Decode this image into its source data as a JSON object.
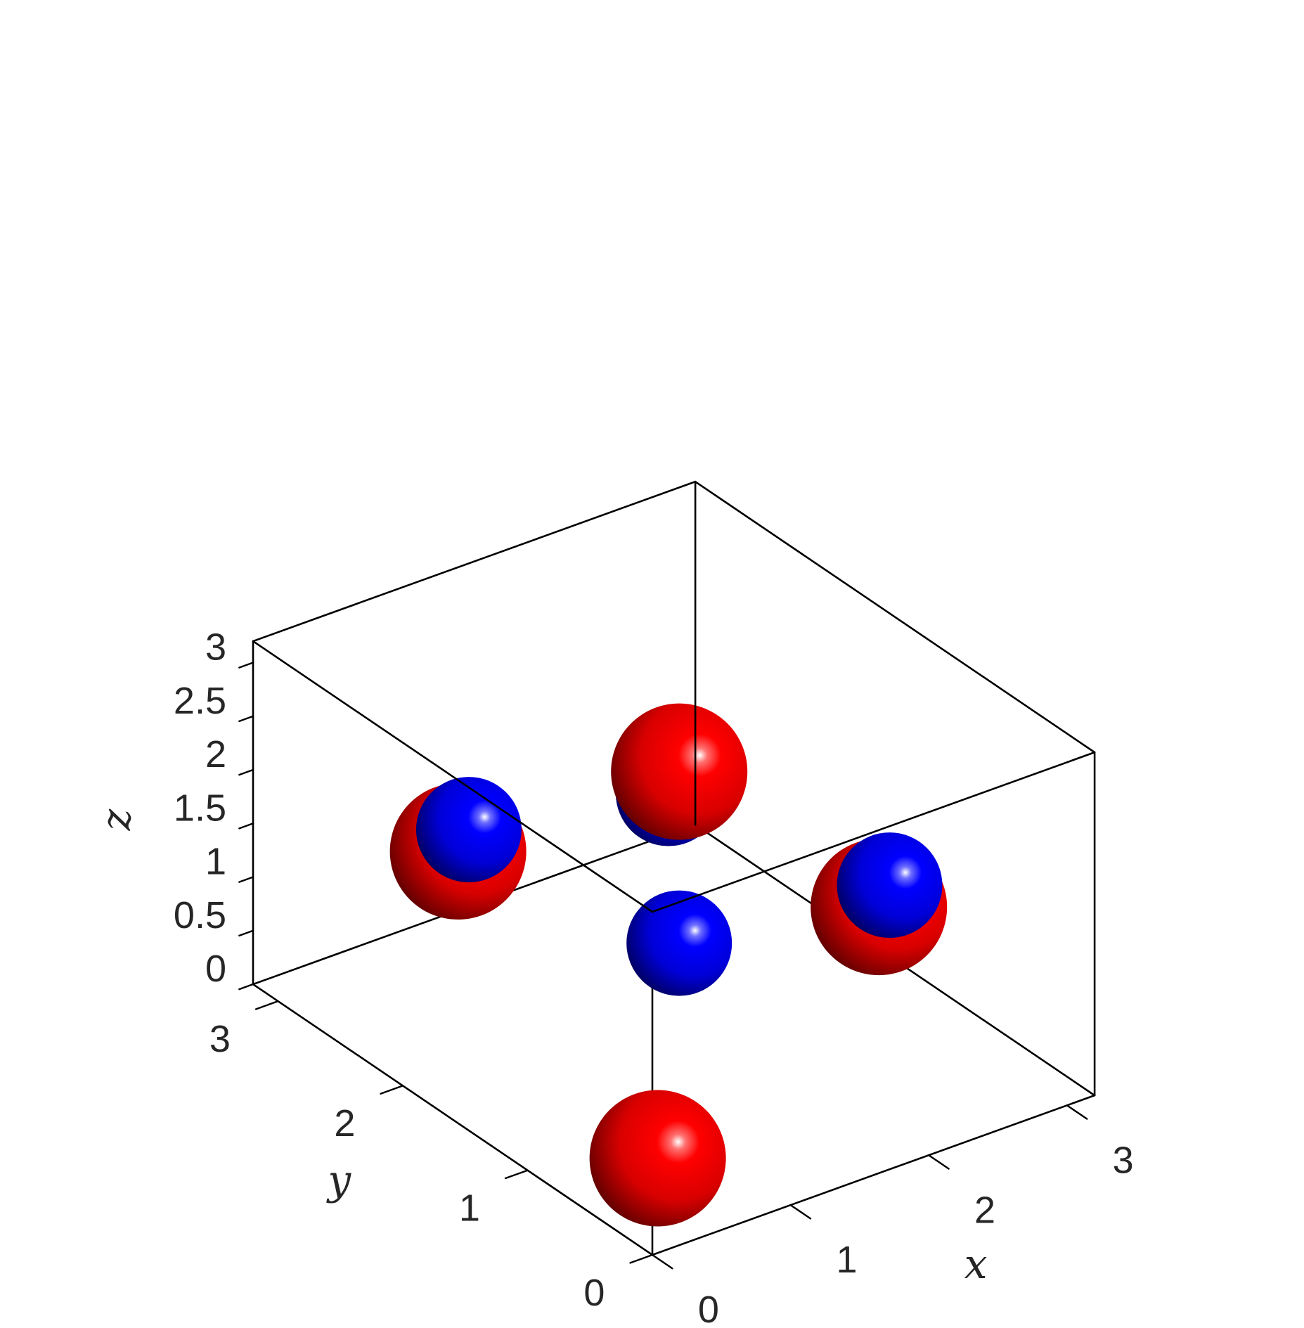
{
  "chart_data": {
    "type": "scatter3d",
    "title": "",
    "xlabel": "x",
    "ylabel": "y",
    "zlabel": "z",
    "xlim": [
      0,
      3.2
    ],
    "ylim": [
      0,
      3.2
    ],
    "zlim": [
      0,
      3.2
    ],
    "xticks": [
      0,
      1,
      2,
      3
    ],
    "yticks": [
      0,
      1,
      2,
      3
    ],
    "zticks": [
      0,
      0.5,
      1,
      1.5,
      2,
      2.5,
      3
    ],
    "xtick_labels": [
      "0",
      "1",
      "2",
      "3"
    ],
    "ytick_labels": [
      "0",
      "1",
      "2",
      "3"
    ],
    "ztick_labels": [
      "0",
      "0.5",
      "1",
      "1.5",
      "2",
      "2.5",
      "3"
    ],
    "grid": false,
    "box": true,
    "series": [
      {
        "color": "#ff0000",
        "points": [
          {
            "x": 0.4,
            "y": 0.4,
            "z": 0.4
          },
          {
            "x": 2.0,
            "y": 2.0,
            "z": 2.0
          },
          {
            "x": 2.0,
            "y": 0.4,
            "z": 2.0
          },
          {
            "x": 0.4,
            "y": 2.0,
            "z": 2.0
          }
        ]
      },
      {
        "color": "#0000ff",
        "points": [
          {
            "x": 1.2,
            "y": 1.2,
            "z": 2.8
          },
          {
            "x": 2.0,
            "y": 2.0,
            "z": 0.4
          },
          {
            "x": 2.8,
            "y": 1.2,
            "z": 1.2
          },
          {
            "x": 1.2,
            "y": 2.8,
            "z": 1.2
          }
        ]
      }
    ]
  }
}
